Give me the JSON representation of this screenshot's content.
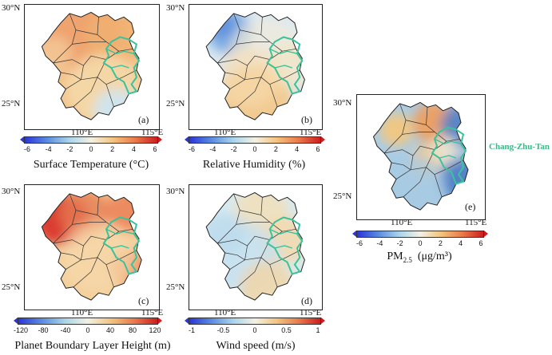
{
  "coords": {
    "lat_north": "30°N",
    "lat_south": "25°N",
    "lon_west": "110°E",
    "lon_east": "115°E"
  },
  "annotation": "Chang-Zhu-Tan",
  "colors": {
    "region_outline": "#3cc29a",
    "cold": "#2a3cd6",
    "neutral": "#f2f2ea",
    "warm": "#d8302a"
  },
  "panels": [
    {
      "label": "(a)",
      "variable": "Surface Temperature (°C)",
      "ticks": [
        "-6",
        "-4",
        "-2",
        "0",
        "2",
        "4",
        "6"
      ],
      "range": [
        -6,
        6
      ]
    },
    {
      "label": "(b)",
      "variable": "Relative Humidity (%)",
      "ticks": [
        "-6",
        "-4",
        "-2",
        "0",
        "2",
        "4",
        "6"
      ],
      "range": [
        -6,
        6
      ]
    },
    {
      "label": "(c)",
      "variable": "Planet Boundary Layer Height (m)",
      "ticks": [
        "-120",
        "-80",
        "-40",
        "0",
        "40",
        "80",
        "120"
      ],
      "range": [
        -120,
        120
      ]
    },
    {
      "label": "(d)",
      "variable": "Wind speed (m/s)",
      "ticks": [
        "-1",
        "-0.5",
        "0",
        "0.5",
        "1"
      ],
      "range": [
        -1,
        1
      ]
    },
    {
      "label": "(e)",
      "variable_main": "PM",
      "variable_sub": "2.5",
      "variable_unit": "(μg/m³)",
      "ticks": [
        "-6",
        "-4",
        "-2",
        "0",
        "2",
        "4",
        "6"
      ],
      "range": [
        -6,
        6
      ]
    }
  ]
}
